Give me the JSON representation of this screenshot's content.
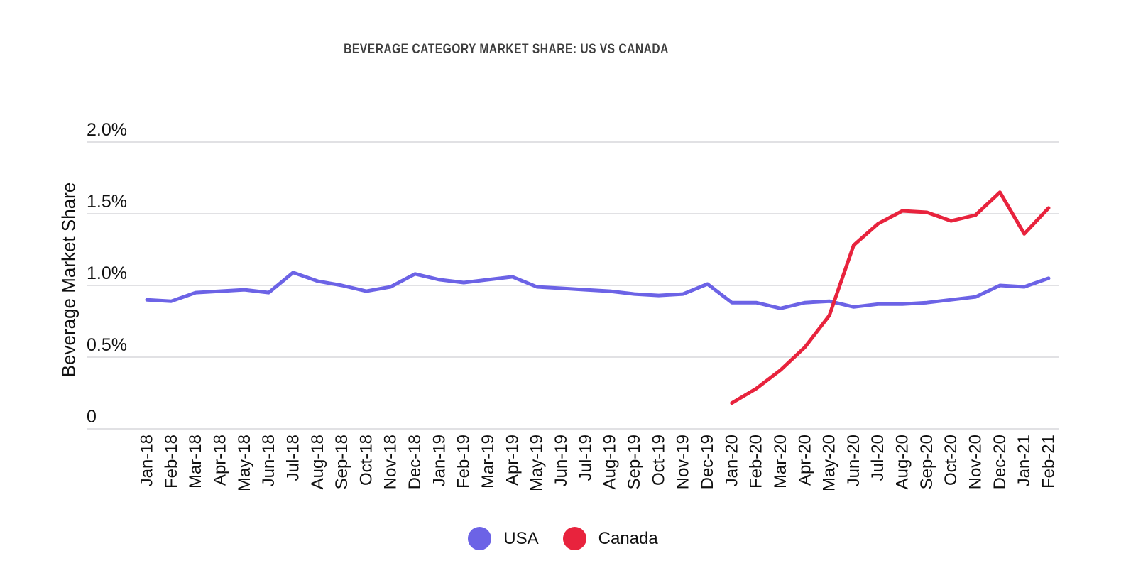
{
  "title": "BEVERAGE CATEGORY MARKET SHARE: US VS CANADA",
  "chart_data": {
    "type": "line",
    "title": "BEVERAGE CATEGORY MARKET SHARE: US VS CANADA",
    "xlabel": "",
    "ylabel": "Beverage Market Share",
    "ylim": [
      0,
      2.0
    ],
    "grid": true,
    "grid_color": "#e1e1e4",
    "legend_position": "bottom",
    "ytick_values": [
      0,
      0.5,
      1.0,
      1.5,
      2.0
    ],
    "ytick_labels": [
      "0",
      "0.5%",
      "1.0%",
      "1.5%",
      "2.0%"
    ],
    "categories": [
      "Jan-18",
      "Feb-18",
      "Mar-18",
      "Apr-18",
      "May-18",
      "Jun-18",
      "Jul-18",
      "Aug-18",
      "Sep-18",
      "Oct-18",
      "Nov-18",
      "Dec-18",
      "Jan-19",
      "Feb-19",
      "Mar-19",
      "Apr-19",
      "May-19",
      "Jun-19",
      "Jul-19",
      "Aug-19",
      "Sep-19",
      "Oct-19",
      "Nov-19",
      "Dec-19",
      "Jan-20",
      "Feb-20",
      "Mar-20",
      "Apr-20",
      "May-20",
      "Jun-20",
      "Jul-20",
      "Aug-20",
      "Sep-20",
      "Oct-20",
      "Nov-20",
      "Dec-20",
      "Jan-21",
      "Feb-21"
    ],
    "unit": "percent",
    "series": [
      {
        "name": "USA",
        "color": "#6c63e6",
        "values": [
          0.9,
          0.89,
          0.95,
          0.96,
          0.97,
          0.95,
          1.09,
          1.03,
          1.0,
          0.96,
          0.99,
          1.08,
          1.04,
          1.02,
          1.04,
          1.06,
          0.99,
          0.98,
          0.97,
          0.96,
          0.94,
          0.93,
          0.94,
          1.01,
          0.88,
          0.88,
          0.84,
          0.88,
          0.89,
          0.85,
          0.87,
          0.87,
          0.88,
          0.9,
          0.92,
          1.0,
          0.99,
          1.05
        ]
      },
      {
        "name": "Canada",
        "color": "#e8233d",
        "values": [
          null,
          null,
          null,
          null,
          null,
          null,
          null,
          null,
          null,
          null,
          null,
          null,
          null,
          null,
          null,
          null,
          null,
          null,
          null,
          null,
          null,
          null,
          null,
          null,
          0.18,
          0.28,
          0.41,
          0.57,
          0.79,
          1.28,
          1.43,
          1.52,
          1.51,
          1.45,
          1.49,
          1.65,
          1.36,
          1.54
        ]
      }
    ]
  },
  "legend": {
    "items": [
      {
        "label": "USA",
        "color": "#6c63e6"
      },
      {
        "label": "Canada",
        "color": "#e8233d"
      }
    ]
  }
}
